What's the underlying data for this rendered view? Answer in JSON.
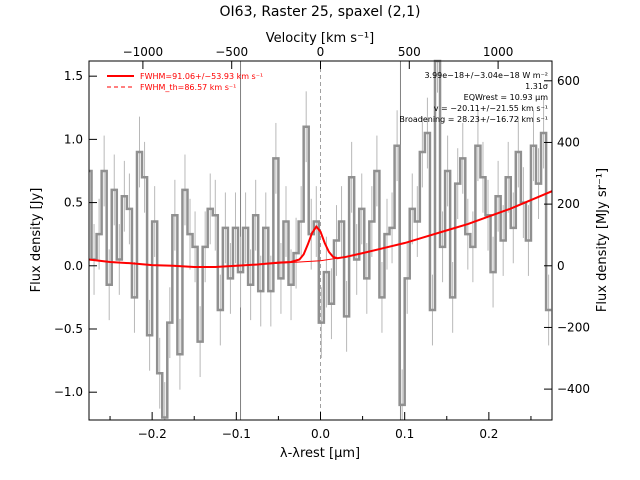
{
  "chart_data": {
    "type": "line",
    "title": "OI63, Raster 25, spaxel (2,1)",
    "xlabel": "λ-λrest [μm]",
    "ylabel": "Flux density [Jy]",
    "ylabel_right": "Flux density [MJy sr⁻¹]",
    "xlabel_top": "Velocity [km s⁻¹]",
    "xlim": [
      -0.275,
      0.275
    ],
    "ylim": [
      -1.22,
      1.62
    ],
    "x_ticks": [
      -0.2,
      -0.1,
      0.0,
      0.1,
      0.2
    ],
    "x_tick_labels": [
      "−0.2",
      "−0.1",
      "0.0",
      "0.1",
      "0.2"
    ],
    "y_ticks": [
      -1.0,
      -0.5,
      0.0,
      0.5,
      1.0,
      1.5
    ],
    "y_tick_labels": [
      "−1.0",
      "−0.5",
      "0.0",
      "0.5",
      "1.0",
      "1.5"
    ],
    "top_axis": {
      "ticks_kms": [
        -1000,
        -500,
        0,
        500,
        1000
      ],
      "tick_labels": [
        "−1000",
        "−500",
        "0",
        "500",
        "1000"
      ],
      "kms_per_micron": 4740
    },
    "right_axis": {
      "ticks": [
        -400,
        -200,
        0,
        200,
        400,
        600
      ],
      "tick_labels": [
        "−400",
        "−200",
        "0",
        "200",
        "400",
        "600"
      ],
      "mjysr_per_jy": 410
    },
    "vertical_lines": {
      "solid": [
        -0.095,
        0.095
      ],
      "dashed": [
        0.0
      ]
    },
    "legend": [
      {
        "text": "FWHM=91.06+/−53.93 km s⁻¹",
        "style": "solid",
        "color": "#ff0000"
      },
      {
        "text": "FWHM_th=86.57 km s⁻¹",
        "style": "dashed",
        "color": "#ff0000"
      }
    ],
    "annotations": [
      "3.99e−18+/−3.04e−18 W m⁻²",
      "1.31σ",
      "EQWrest = 10.93 μm",
      "v = −20.11+/−21.55 km s⁻¹",
      "Broadening = 28.23+/−16.72 km s⁻¹"
    ],
    "series": [
      {
        "style": "steps-with-errorbars",
        "color": "#909090",
        "x": [
          -0.275,
          -0.269,
          -0.263,
          -0.257,
          -0.251,
          -0.245,
          -0.239,
          -0.233,
          -0.227,
          -0.221,
          -0.215,
          -0.209,
          -0.203,
          -0.197,
          -0.191,
          -0.185,
          -0.179,
          -0.173,
          -0.167,
          -0.161,
          -0.155,
          -0.149,
          -0.143,
          -0.137,
          -0.131,
          -0.125,
          -0.119,
          -0.113,
          -0.107,
          -0.101,
          -0.095,
          -0.089,
          -0.083,
          -0.077,
          -0.071,
          -0.065,
          -0.059,
          -0.053,
          -0.047,
          -0.041,
          -0.035,
          -0.029,
          -0.023,
          -0.017,
          -0.011,
          -0.005,
          0.001,
          0.007,
          0.013,
          0.019,
          0.025,
          0.031,
          0.037,
          0.043,
          0.049,
          0.055,
          0.061,
          0.067,
          0.073,
          0.079,
          0.085,
          0.091,
          0.097,
          0.103,
          0.109,
          0.115,
          0.121,
          0.127,
          0.133,
          0.139,
          0.145,
          0.151,
          0.157,
          0.163,
          0.169,
          0.175,
          0.181,
          0.187,
          0.193,
          0.199,
          0.205,
          0.211,
          0.217,
          0.223,
          0.229,
          0.235,
          0.241,
          0.247,
          0.253,
          0.259,
          0.265,
          0.271
        ],
        "y": [
          0.75,
          0.05,
          0.25,
          0.75,
          -0.15,
          0.6,
          0.05,
          0.55,
          0.45,
          -0.25,
          0.9,
          0.7,
          -0.55,
          0.35,
          -0.85,
          -1.2,
          -0.45,
          0.4,
          -0.7,
          0.6,
          0.25,
          0.15,
          -0.6,
          0.15,
          0.45,
          0.4,
          -0.35,
          0.3,
          -0.1,
          0.3,
          -0.05,
          0.3,
          -0.15,
          0.4,
          -0.2,
          0.3,
          -0.2,
          0.85,
          -0.1,
          0.35,
          -0.15,
          0.1,
          0.35,
          1.1,
          0.25,
          0.35,
          -0.45,
          -0.05,
          -0.3,
          0.2,
          0.35,
          -0.4,
          0.7,
          0.05,
          0.45,
          -0.1,
          0.35,
          0.75,
          -0.25,
          0.25,
          0.3,
          0.95,
          -1.1,
          -0.1,
          0.45,
          0.35,
          0.9,
          1.05,
          -0.35,
          1.65,
          0.15,
          0.75,
          -0.25,
          0.65,
          0.85,
          0.25,
          0.15,
          0.95,
          0.7,
          0.4,
          -0.05,
          0.55,
          0.2,
          0.7,
          0.3,
          0.9,
          0.5,
          0.2,
          0.95,
          0.65,
          1.05,
          -0.35
        ],
        "err": 0.28
      },
      {
        "name": "",
        "style": "model",
        "color": "#ff0000",
        "x": [
          -0.275,
          -0.25,
          -0.225,
          -0.2,
          -0.175,
          -0.15,
          -0.125,
          -0.1,
          -0.075,
          -0.05,
          -0.035,
          -0.025,
          -0.02,
          -0.015,
          -0.01,
          -0.005,
          0.0,
          0.005,
          0.01,
          0.015,
          0.02,
          0.03,
          0.05,
          0.075,
          0.1,
          0.125,
          0.15,
          0.175,
          0.2,
          0.225,
          0.25,
          0.275
        ],
        "y": [
          0.05,
          0.03,
          0.02,
          0.005,
          0.0,
          -0.01,
          -0.01,
          0.0,
          0.01,
          0.025,
          0.03,
          0.05,
          0.09,
          0.17,
          0.26,
          0.31,
          0.27,
          0.18,
          0.11,
          0.07,
          0.06,
          0.07,
          0.1,
          0.14,
          0.18,
          0.23,
          0.28,
          0.33,
          0.39,
          0.45,
          0.52,
          0.59
        ]
      },
      {
        "name": "",
        "style": "continuum",
        "color": "#ff0000",
        "x": [
          -0.275,
          -0.25,
          -0.225,
          -0.2,
          -0.175,
          -0.15,
          -0.125,
          -0.1,
          -0.075,
          -0.05,
          -0.025,
          0.0,
          0.025,
          0.05,
          0.075,
          0.1,
          0.125,
          0.15,
          0.175,
          0.2,
          0.225,
          0.25,
          0.275
        ],
        "y": [
          0.05,
          0.03,
          0.02,
          0.005,
          0.0,
          -0.01,
          -0.01,
          0.0,
          0.01,
          0.02,
          0.03,
          0.04,
          0.065,
          0.1,
          0.14,
          0.18,
          0.23,
          0.28,
          0.33,
          0.39,
          0.45,
          0.52,
          0.59
        ]
      }
    ]
  }
}
